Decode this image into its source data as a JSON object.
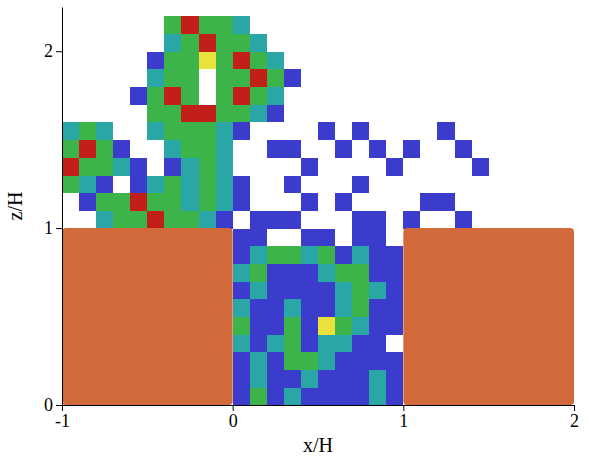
{
  "chart_data": {
    "type": "heatmap",
    "x_label": "x/H",
    "y_label": "z/H",
    "xlim": [
      -1,
      2
    ],
    "ylim": [
      0,
      2.25
    ],
    "xticks": [
      -1,
      0,
      1,
      2
    ],
    "yticks": [
      0,
      1,
      2
    ],
    "tick_labels": true,
    "colors": [
      "#ffffff",
      "#3b3bcc",
      "#2aa6a6",
      "#3cb44a",
      "#e8e23a",
      "#c21f1a"
    ],
    "x_bins": [
      -1,
      -0.9,
      -0.8,
      -0.7,
      -0.6,
      -0.5,
      -0.4,
      -0.3,
      -0.2,
      -0.1,
      0,
      0.1,
      0.2,
      0.3,
      0.4,
      0.5,
      0.6,
      0.7,
      0.8,
      0.9,
      1,
      1.1,
      1.2,
      1.3,
      1.4,
      1.5,
      1.6,
      1.7,
      1.8,
      1.9,
      2
    ],
    "z_bins": [
      0,
      0.1,
      0.2,
      0.3,
      0.4,
      0.5,
      0.6,
      0.7,
      0.8,
      0.9,
      1,
      1.1,
      1.2,
      1.3,
      1.4,
      1.5,
      1.6,
      1.7,
      1.8,
      1.9,
      2,
      2.1,
      2.2
    ],
    "cells": [
      [
        0,
        0,
        0,
        0,
        0,
        0,
        0,
        0,
        0,
        0,
        1,
        3,
        1,
        2,
        1,
        1,
        1,
        1,
        2,
        1,
        0,
        0,
        0,
        0,
        0,
        0,
        0,
        0,
        0,
        0
      ],
      [
        0,
        0,
        0,
        0,
        0,
        0,
        0,
        0,
        0,
        0,
        1,
        2,
        1,
        1,
        2,
        1,
        1,
        1,
        2,
        1,
        0,
        0,
        0,
        0,
        0,
        0,
        0,
        0,
        0,
        0
      ],
      [
        0,
        0,
        0,
        0,
        0,
        0,
        0,
        0,
        0,
        0,
        1,
        2,
        1,
        3,
        3,
        2,
        1,
        1,
        1,
        1,
        0,
        0,
        0,
        0,
        0,
        0,
        0,
        0,
        0,
        0
      ],
      [
        0,
        0,
        0,
        0,
        0,
        0,
        0,
        0,
        0,
        0,
        2,
        1,
        2,
        3,
        1,
        2,
        2,
        1,
        1,
        0,
        0,
        0,
        0,
        0,
        0,
        0,
        0,
        0,
        0,
        0
      ],
      [
        0,
        0,
        0,
        0,
        0,
        0,
        0,
        0,
        0,
        0,
        3,
        1,
        1,
        3,
        1,
        4,
        3,
        2,
        1,
        1,
        0,
        0,
        0,
        0,
        0,
        0,
        0,
        0,
        0,
        0
      ],
      [
        0,
        0,
        0,
        0,
        0,
        0,
        0,
        0,
        0,
        0,
        2,
        1,
        1,
        2,
        1,
        1,
        2,
        3,
        1,
        1,
        0,
        0,
        0,
        0,
        0,
        0,
        0,
        0,
        0,
        0
      ],
      [
        0,
        0,
        0,
        0,
        0,
        0,
        0,
        0,
        0,
        0,
        1,
        2,
        1,
        1,
        1,
        1,
        2,
        3,
        2,
        1,
        0,
        0,
        0,
        0,
        0,
        0,
        0,
        0,
        0,
        0
      ],
      [
        0,
        0,
        0,
        0,
        0,
        0,
        0,
        0,
        0,
        0,
        2,
        3,
        1,
        1,
        1,
        2,
        3,
        3,
        1,
        1,
        0,
        0,
        0,
        0,
        0,
        0,
        0,
        0,
        0,
        0
      ],
      [
        0,
        0,
        0,
        0,
        0,
        0,
        0,
        0,
        0,
        0,
        1,
        2,
        3,
        3,
        2,
        3,
        1,
        2,
        1,
        1,
        0,
        0,
        0,
        0,
        0,
        0,
        0,
        0,
        0,
        0
      ],
      [
        0,
        0,
        0,
        0,
        0,
        0,
        0,
        0,
        0,
        0,
        1,
        1,
        0,
        0,
        1,
        1,
        0,
        1,
        1,
        0,
        0,
        0,
        0,
        0,
        0,
        0,
        0,
        0,
        0,
        0
      ],
      [
        0,
        0,
        2,
        3,
        3,
        5,
        3,
        3,
        2,
        1,
        0,
        1,
        1,
        1,
        0,
        0,
        0,
        1,
        1,
        0,
        1,
        0,
        0,
        1,
        0,
        0,
        0,
        0,
        0,
        0
      ],
      [
        0,
        1,
        3,
        3,
        5,
        3,
        3,
        2,
        3,
        2,
        1,
        0,
        0,
        0,
        1,
        0,
        1,
        0,
        0,
        0,
        0,
        1,
        1,
        0,
        0,
        0,
        0,
        0,
        0,
        0
      ],
      [
        3,
        2,
        1,
        0,
        1,
        2,
        3,
        2,
        3,
        2,
        1,
        0,
        0,
        1,
        0,
        0,
        0,
        1,
        0,
        0,
        0,
        0,
        0,
        0,
        0,
        0,
        0,
        0,
        0,
        0
      ],
      [
        5,
        3,
        3,
        2,
        1,
        0,
        1,
        2,
        3,
        2,
        0,
        0,
        0,
        0,
        1,
        0,
        0,
        0,
        0,
        1,
        0,
        0,
        0,
        0,
        1,
        0,
        0,
        0,
        0,
        0
      ],
      [
        3,
        5,
        3,
        1,
        0,
        0,
        2,
        3,
        3,
        2,
        0,
        0,
        1,
        1,
        0,
        0,
        1,
        0,
        1,
        0,
        1,
        0,
        0,
        1,
        0,
        0,
        0,
        0,
        0,
        0
      ],
      [
        2,
        3,
        2,
        0,
        0,
        2,
        3,
        3,
        3,
        2,
        1,
        0,
        0,
        0,
        0,
        1,
        0,
        1,
        0,
        0,
        0,
        0,
        1,
        0,
        0,
        0,
        0,
        0,
        0,
        0
      ],
      [
        0,
        0,
        0,
        0,
        0,
        3,
        3,
        5,
        5,
        3,
        3,
        2,
        1,
        0,
        0,
        0,
        0,
        0,
        0,
        0,
        0,
        0,
        0,
        0,
        0,
        0,
        0,
        0,
        0,
        0
      ],
      [
        0,
        0,
        0,
        0,
        1,
        3,
        5,
        3,
        0,
        3,
        5,
        3,
        2,
        0,
        0,
        0,
        0,
        0,
        0,
        0,
        0,
        0,
        0,
        0,
        0,
        0,
        0,
        0,
        0,
        0
      ],
      [
        0,
        0,
        0,
        0,
        0,
        2,
        3,
        3,
        0,
        3,
        3,
        5,
        3,
        1,
        0,
        0,
        0,
        0,
        0,
        0,
        0,
        0,
        0,
        0,
        0,
        0,
        0,
        0,
        0,
        0
      ],
      [
        0,
        0,
        0,
        0,
        0,
        1,
        3,
        3,
        4,
        3,
        5,
        3,
        2,
        0,
        0,
        0,
        0,
        0,
        0,
        0,
        0,
        0,
        0,
        0,
        0,
        0,
        0,
        0,
        0,
        0
      ],
      [
        0,
        0,
        0,
        0,
        0,
        0,
        2,
        3,
        5,
        3,
        3,
        2,
        0,
        0,
        0,
        0,
        0,
        0,
        0,
        0,
        0,
        0,
        0,
        0,
        0,
        0,
        0,
        0,
        0,
        0
      ],
      [
        0,
        0,
        0,
        0,
        0,
        0,
        3,
        5,
        3,
        3,
        2,
        0,
        0,
        0,
        0,
        0,
        0,
        0,
        0,
        0,
        0,
        0,
        0,
        0,
        0,
        0,
        0,
        0,
        0,
        0
      ]
    ],
    "buildings": [
      {
        "x": [
          -1,
          0
        ],
        "z": [
          0,
          1
        ],
        "color": "#d2693a"
      },
      {
        "x": [
          1,
          2
        ],
        "z": [
          0,
          1
        ],
        "color": "#d2693a"
      }
    ]
  }
}
